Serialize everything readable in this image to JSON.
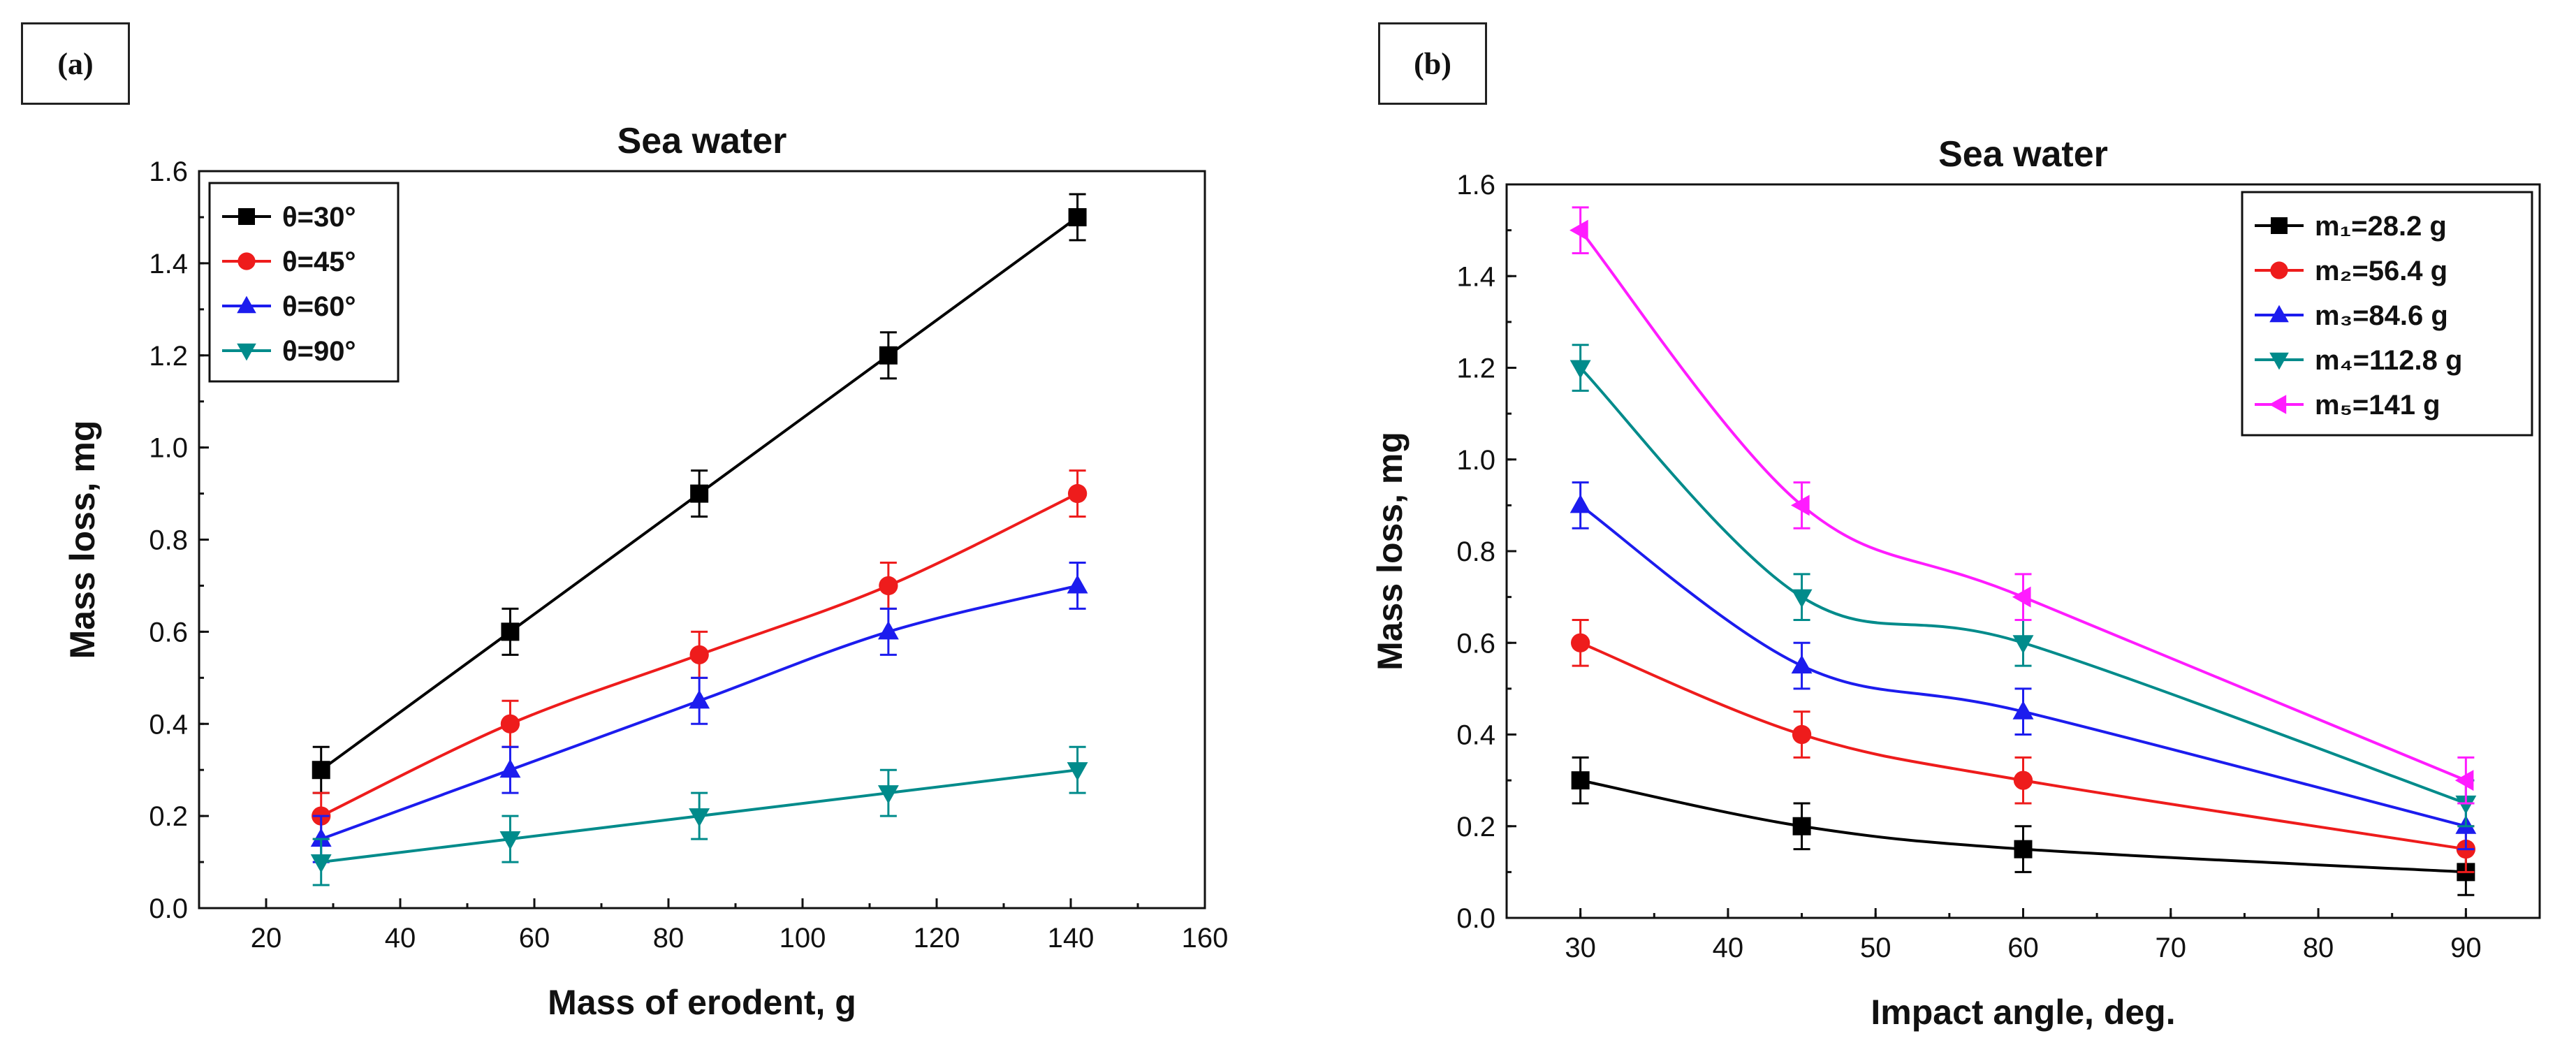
{
  "panels": {
    "a": {
      "label": "(a)"
    },
    "b": {
      "label": "(b)"
    }
  },
  "chart_data": [
    {
      "type": "line",
      "title": "Sea water",
      "xlabel": "Mass of erodent, g",
      "ylabel": "Mass loss, mg",
      "xlim": [
        10,
        160
      ],
      "ylim": [
        0.0,
        1.6
      ],
      "xticks": [
        "20",
        "40",
        "60",
        "80",
        "100",
        "120",
        "140",
        "160"
      ],
      "yticks": [
        "0.0",
        "0.2",
        "0.4",
        "0.6",
        "0.8",
        "1.0",
        "1.2",
        "1.4",
        "1.6"
      ],
      "legend_position": "top-left",
      "x": [
        28.2,
        56.4,
        84.6,
        112.8,
        141
      ],
      "series": [
        {
          "name": "θ=30°",
          "color": "#000000",
          "marker": "square",
          "values": [
            0.3,
            0.6,
            0.9,
            1.2,
            1.5
          ]
        },
        {
          "name": "θ=45°",
          "color": "#ee1c1c",
          "marker": "circle",
          "values": [
            0.2,
            0.4,
            0.55,
            0.7,
            0.9
          ]
        },
        {
          "name": "θ=60°",
          "color": "#1c1cee",
          "marker": "triangle-up",
          "values": [
            0.15,
            0.3,
            0.45,
            0.6,
            0.7
          ]
        },
        {
          "name": "θ=90°",
          "color": "#008b8b",
          "marker": "triangle-down",
          "values": [
            0.1,
            0.15,
            0.2,
            0.25,
            0.3
          ]
        }
      ],
      "error": 0.05
    },
    {
      "type": "line",
      "title": "Sea water",
      "xlabel": "Impact angle, deg.",
      "ylabel": "Mass loss, mg",
      "xlim": [
        25,
        95
      ],
      "ylim": [
        0.0,
        1.6
      ],
      "xticks": [
        "30",
        "40",
        "50",
        "60",
        "70",
        "80",
        "90"
      ],
      "yticks": [
        "0.0",
        "0.2",
        "0.4",
        "0.6",
        "0.8",
        "1.0",
        "1.2",
        "1.4",
        "1.6"
      ],
      "legend_position": "top-right",
      "x": [
        30,
        45,
        60,
        90
      ],
      "series": [
        {
          "name": "m₁=28.2 g",
          "color": "#000000",
          "marker": "square",
          "values": [
            0.3,
            0.2,
            0.15,
            0.1
          ]
        },
        {
          "name": "m₂=56.4 g",
          "color": "#ee1c1c",
          "marker": "circle",
          "values": [
            0.6,
            0.4,
            0.3,
            0.15
          ]
        },
        {
          "name": "m₃=84.6 g",
          "color": "#1c1cee",
          "marker": "triangle-up",
          "values": [
            0.9,
            0.55,
            0.45,
            0.2
          ]
        },
        {
          "name": "m₄=112.8 g",
          "color": "#008b8b",
          "marker": "triangle-down",
          "values": [
            1.2,
            0.7,
            0.6,
            0.25
          ]
        },
        {
          "name": "m₅=141 g",
          "color": "#ff1cff",
          "marker": "triangle-left",
          "values": [
            1.5,
            0.9,
            0.7,
            0.3
          ]
        }
      ],
      "error": 0.05
    }
  ]
}
